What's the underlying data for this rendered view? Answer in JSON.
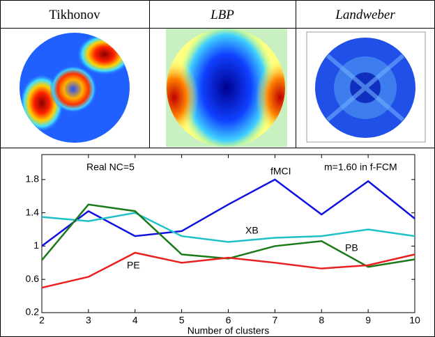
{
  "images": {
    "headers": [
      "Tikhonov",
      "LBP",
      "Landweber"
    ]
  },
  "chart_data": {
    "type": "line",
    "x": [
      2,
      3,
      4,
      5,
      6,
      7,
      8,
      9,
      10
    ],
    "xlabel": "Number of clusters",
    "xlim": [
      2,
      10
    ],
    "xticks": [
      2,
      3,
      4,
      5,
      6,
      7,
      8,
      9,
      10
    ],
    "ylim": [
      0.2,
      2.1
    ],
    "yticks": [
      0.2,
      0.6,
      1,
      1.4,
      1.8
    ],
    "annotations": [
      "Real NC=5",
      "m=1.60 in f-FCM"
    ],
    "series": [
      {
        "name": "fMCI",
        "color": "#1010e0",
        "values": [
          1.0,
          1.42,
          1.12,
          1.18,
          1.5,
          1.8,
          1.38,
          1.78,
          1.33
        ]
      },
      {
        "name": "XB",
        "color": "#20c0c8",
        "values": [
          1.35,
          1.3,
          1.4,
          1.12,
          1.05,
          1.1,
          1.12,
          1.2,
          1.12
        ]
      },
      {
        "name": "PB",
        "color": "#1a7a1a",
        "values": [
          0.83,
          1.5,
          1.42,
          0.9,
          0.85,
          1.0,
          1.06,
          0.75,
          0.84
        ]
      },
      {
        "name": "PE",
        "color": "#e82020",
        "values": [
          0.5,
          0.63,
          0.92,
          0.8,
          0.86,
          0.8,
          0.73,
          0.77,
          0.9
        ]
      }
    ]
  }
}
